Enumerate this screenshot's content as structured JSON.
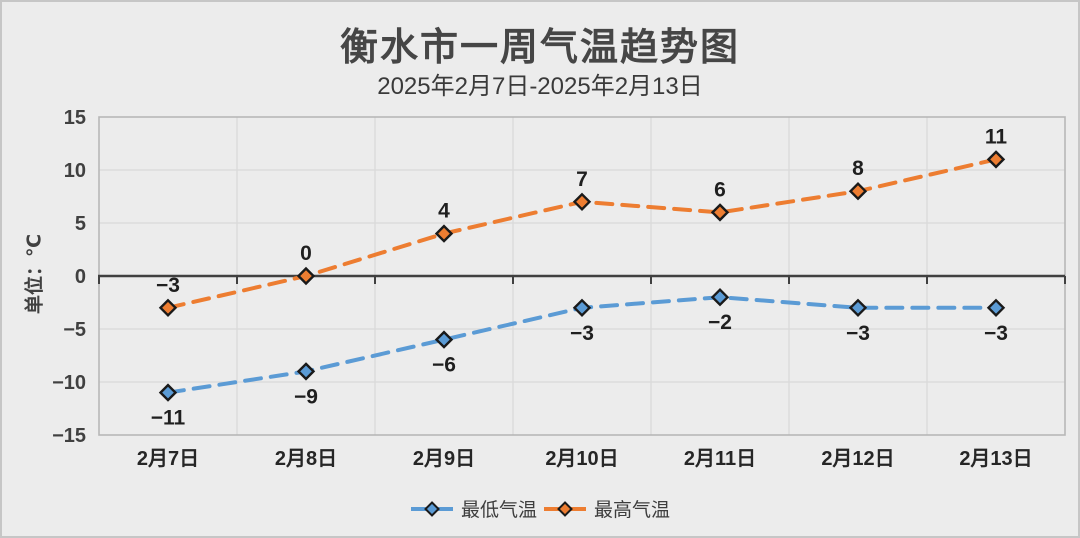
{
  "chart_data": {
    "type": "line",
    "title": "衡水市一周气温趋势图",
    "subtitle": "2025年2月7日-2025年2月13日",
    "ylabel": "单位：℃",
    "categories": [
      "2月7日",
      "2月8日",
      "2月9日",
      "2月10日",
      "2月11日",
      "2月12日",
      "2月13日"
    ],
    "series": [
      {
        "name": "最低气温",
        "color": "#5B9BD5",
        "values": [
          -11,
          -9,
          -6,
          -3,
          -2,
          -3,
          -3
        ],
        "label_position": "below"
      },
      {
        "name": "最高气温",
        "color": "#ED7D31",
        "values": [
          -3,
          0,
          4,
          7,
          6,
          8,
          11
        ],
        "label_position": "above"
      }
    ],
    "ylim": [
      -15,
      15
    ],
    "ytick_step": 5,
    "grid": true,
    "legend_position": "bottom",
    "colors": {
      "background": "#ECECEC",
      "gridline": "#D9D9D9",
      "plot_border": "#B7B7B7",
      "zero_axis": "#404040",
      "tick_text": "#404040",
      "category_text": "#262626",
      "data_label_text": "#1F1F1F",
      "marker_outline": "#1A1A1A"
    }
  }
}
